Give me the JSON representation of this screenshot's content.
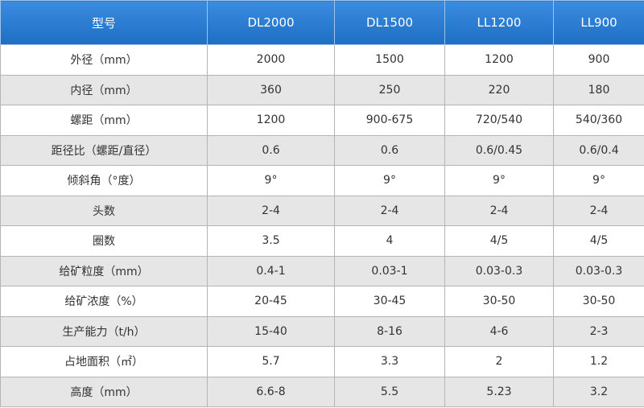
{
  "table": {
    "header": [
      "型号",
      "DL2000",
      "DL1500",
      "LL1200",
      "LL900"
    ],
    "rows": [
      [
        "外径（mm）",
        "2000",
        "1500",
        "1200",
        "900"
      ],
      [
        "内径（mm）",
        "360",
        "250",
        "220",
        "180"
      ],
      [
        "螺距（mm）",
        "1200",
        "900-675",
        "720/540",
        "540/360"
      ],
      [
        "距径比（螺距/直径）",
        "0.6",
        "0.6",
        "0.6/0.45",
        "0.6/0.4"
      ],
      [
        "倾斜角（°度）",
        "9°",
        "9°",
        "9°",
        "9°"
      ],
      [
        "头数",
        "2-4",
        "2-4",
        "2-4",
        "2-4"
      ],
      [
        "圈数",
        "3.5",
        "4",
        "4/5",
        "4/5"
      ],
      [
        "给矿粒度（mm）",
        "0.4-1",
        "0.03-1",
        "0.03-0.3",
        "0.03-0.3"
      ],
      [
        "给矿浓度（%）",
        "20-45",
        "30-45",
        "30-50",
        "30-50"
      ],
      [
        "生产能力（t/h）",
        "15-40",
        "8-16",
        "4-6",
        "2-3"
      ],
      [
        "占地面积（㎡）",
        "5.7",
        "3.3",
        "2",
        "1.2"
      ],
      [
        "高度（mm）",
        "6.6-8",
        "5.5",
        "5.23",
        "3.2"
      ]
    ]
  }
}
